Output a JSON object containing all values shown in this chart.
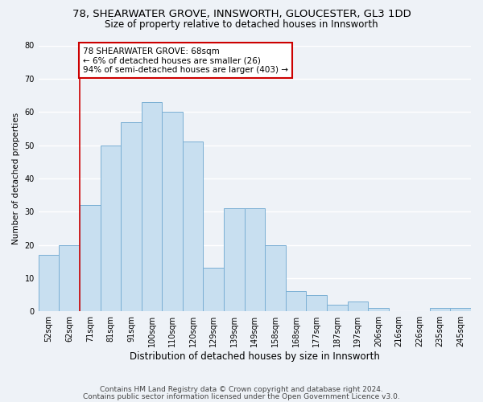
{
  "title1": "78, SHEARWATER GROVE, INNSWORTH, GLOUCESTER, GL3 1DD",
  "title2": "Size of property relative to detached houses in Innsworth",
  "xlabel": "Distribution of detached houses by size in Innsworth",
  "ylabel": "Number of detached properties",
  "bar_labels": [
    "52sqm",
    "62sqm",
    "71sqm",
    "81sqm",
    "91sqm",
    "100sqm",
    "110sqm",
    "120sqm",
    "129sqm",
    "139sqm",
    "149sqm",
    "158sqm",
    "168sqm",
    "177sqm",
    "187sqm",
    "197sqm",
    "206sqm",
    "216sqm",
    "226sqm",
    "235sqm",
    "245sqm"
  ],
  "bar_values": [
    17,
    20,
    32,
    50,
    57,
    63,
    60,
    51,
    13,
    31,
    31,
    20,
    6,
    5,
    2,
    3,
    1,
    0,
    0,
    1,
    1
  ],
  "bar_color": "#c8dff0",
  "bar_edge_color": "#7aafd4",
  "background_color": "#eef2f7",
  "grid_color": "#ffffff",
  "annotation_box_text": "78 SHEARWATER GROVE: 68sqm\n← 6% of detached houses are smaller (26)\n94% of semi-detached houses are larger (403) →",
  "annotation_box_edge_color": "#cc0000",
  "annotation_box_face_color": "#ffffff",
  "vertical_line_color": "#cc0000",
  "vertical_line_xindex": 2,
  "ylim": [
    0,
    80
  ],
  "yticks": [
    0,
    10,
    20,
    30,
    40,
    50,
    60,
    70,
    80
  ],
  "footer1": "Contains HM Land Registry data © Crown copyright and database right 2024.",
  "footer2": "Contains public sector information licensed under the Open Government Licence v3.0.",
  "title1_fontsize": 9.5,
  "title2_fontsize": 8.5,
  "xlabel_fontsize": 8.5,
  "ylabel_fontsize": 7.5,
  "tick_fontsize": 7,
  "annotation_fontsize": 7.5,
  "footer_fontsize": 6.5
}
